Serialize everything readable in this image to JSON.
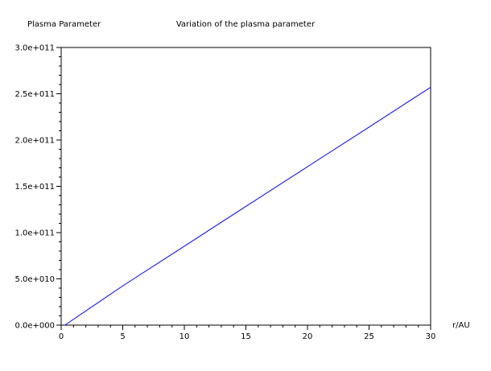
{
  "chart_data": {
    "type": "line",
    "title": "Variation of the plasma parameter",
    "ylabel": "Plasma Parameter",
    "xlabel": "r/AU",
    "xlim": [
      0,
      30
    ],
    "ylim": [
      0,
      300000000000
    ],
    "x_ticks": [
      0,
      5,
      10,
      15,
      20,
      25,
      30
    ],
    "x_tick_labels": [
      "0",
      "5",
      "10",
      "15",
      "20",
      "25",
      "30"
    ],
    "y_ticks": [
      0,
      50000000000,
      100000000000,
      150000000000,
      200000000000,
      250000000000,
      300000000000
    ],
    "y_tick_labels": [
      "0.0e+000",
      "5.0e+010",
      "1.0e+011",
      "1.5e+011",
      "2.0e+011",
      "2.5e+011",
      "3.0e+011"
    ],
    "grid": false,
    "series": [
      {
        "name": "plasma parameter",
        "color": "#0000ff",
        "x": [
          0.3,
          5,
          10,
          15,
          20,
          25,
          30
        ],
        "y": [
          0,
          42400000000,
          85300000000,
          128300000000,
          171200000000,
          214000000000,
          257000000000
        ]
      }
    ]
  }
}
